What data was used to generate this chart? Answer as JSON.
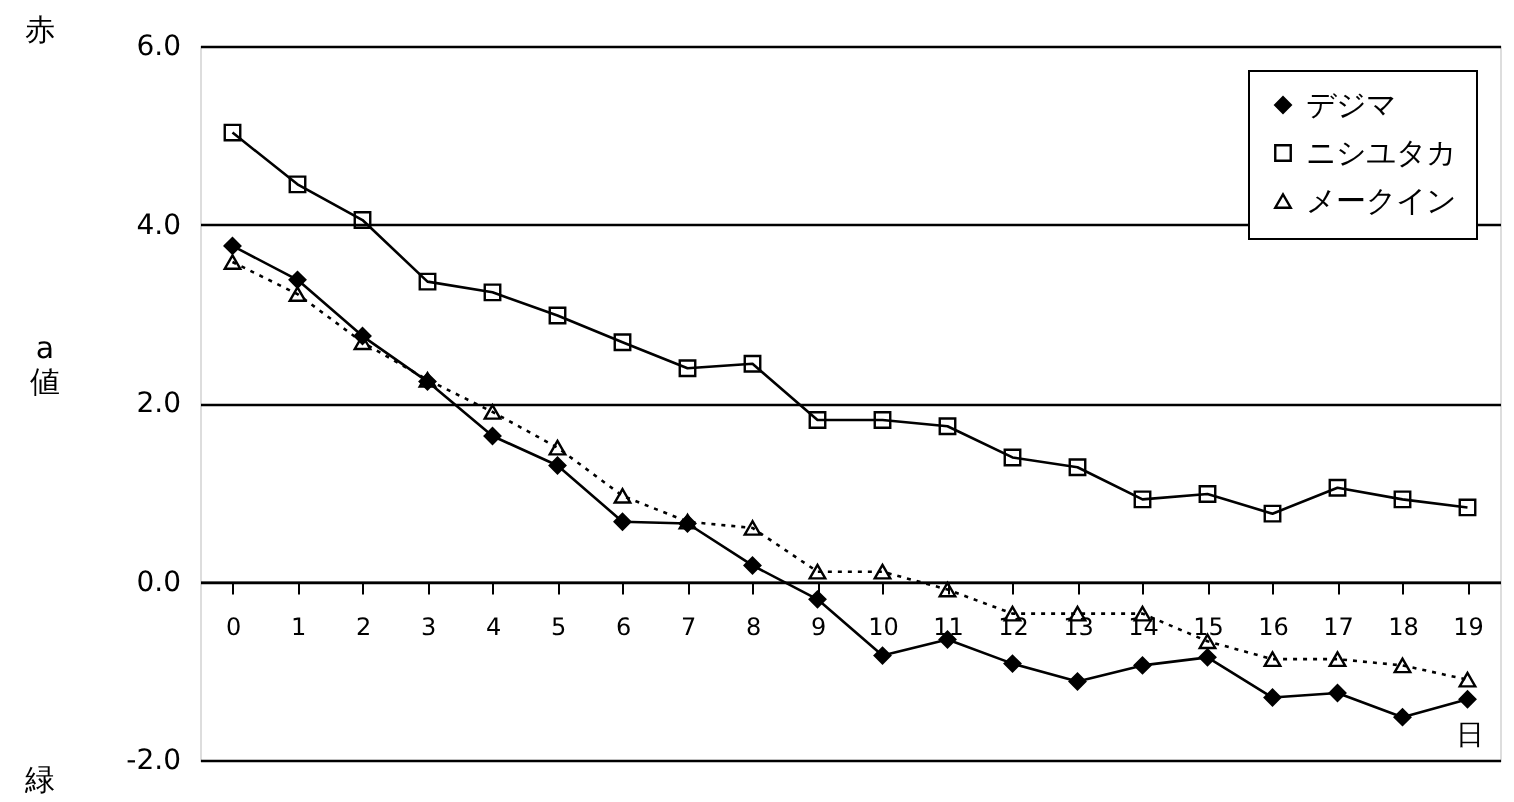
{
  "chart_data": {
    "type": "line",
    "xlabel": "日",
    "ylabel": "a 値",
    "annotations": [
      "赤",
      "緑"
    ],
    "x": [
      0,
      1,
      2,
      3,
      4,
      5,
      6,
      7,
      8,
      9,
      10,
      11,
      12,
      13,
      14,
      15,
      16,
      17,
      18,
      19
    ],
    "xlim": [
      -0.5,
      19.5
    ],
    "xticks": [
      0,
      1,
      2,
      3,
      4,
      5,
      6,
      7,
      8,
      9,
      10,
      11,
      12,
      13,
      14,
      15,
      16,
      17,
      18,
      19
    ],
    "ylim": [
      -2,
      6
    ],
    "yticks": [
      {
        "value": -2,
        "label": "-2.0"
      },
      {
        "value": 0,
        "label": "0.0"
      },
      {
        "value": 2,
        "label": "2.0"
      },
      {
        "value": 4,
        "label": "4.0"
      },
      {
        "value": 6,
        "label": "6.0"
      }
    ],
    "grid": "y",
    "legend": "top right",
    "series": [
      {
        "name": "デジマ",
        "color": "#000000",
        "marker": "diamond",
        "line_style": "solid",
        "values": [
          3.76,
          3.38,
          2.75,
          2.24,
          1.63,
          1.3,
          0.67,
          0.65,
          0.18,
          -0.2,
          -0.83,
          -0.65,
          -0.92,
          -1.12,
          -0.94,
          -0.85,
          -1.3,
          -1.25,
          -1.52,
          -1.32
        ]
      },
      {
        "name": "ニシユタカ",
        "color": "#000000",
        "marker": "square",
        "line_style": "solid",
        "values": [
          5.03,
          4.45,
          4.05,
          3.36,
          3.24,
          2.98,
          2.68,
          2.39,
          2.44,
          1.81,
          1.81,
          1.74,
          1.39,
          1.28,
          0.92,
          0.98,
          0.76,
          1.05,
          0.92,
          0.83
        ]
      },
      {
        "name": "メークイン",
        "color": "#000000",
        "marker": "triangle",
        "line_style": "dotted",
        "values": [
          3.58,
          3.22,
          2.68,
          2.26,
          1.9,
          1.5,
          0.96,
          0.67,
          0.6,
          0.11,
          0.11,
          -0.09,
          -0.36,
          -0.36,
          -0.36,
          -0.67,
          -0.87,
          -0.87,
          -0.94,
          -1.1
        ]
      }
    ]
  }
}
